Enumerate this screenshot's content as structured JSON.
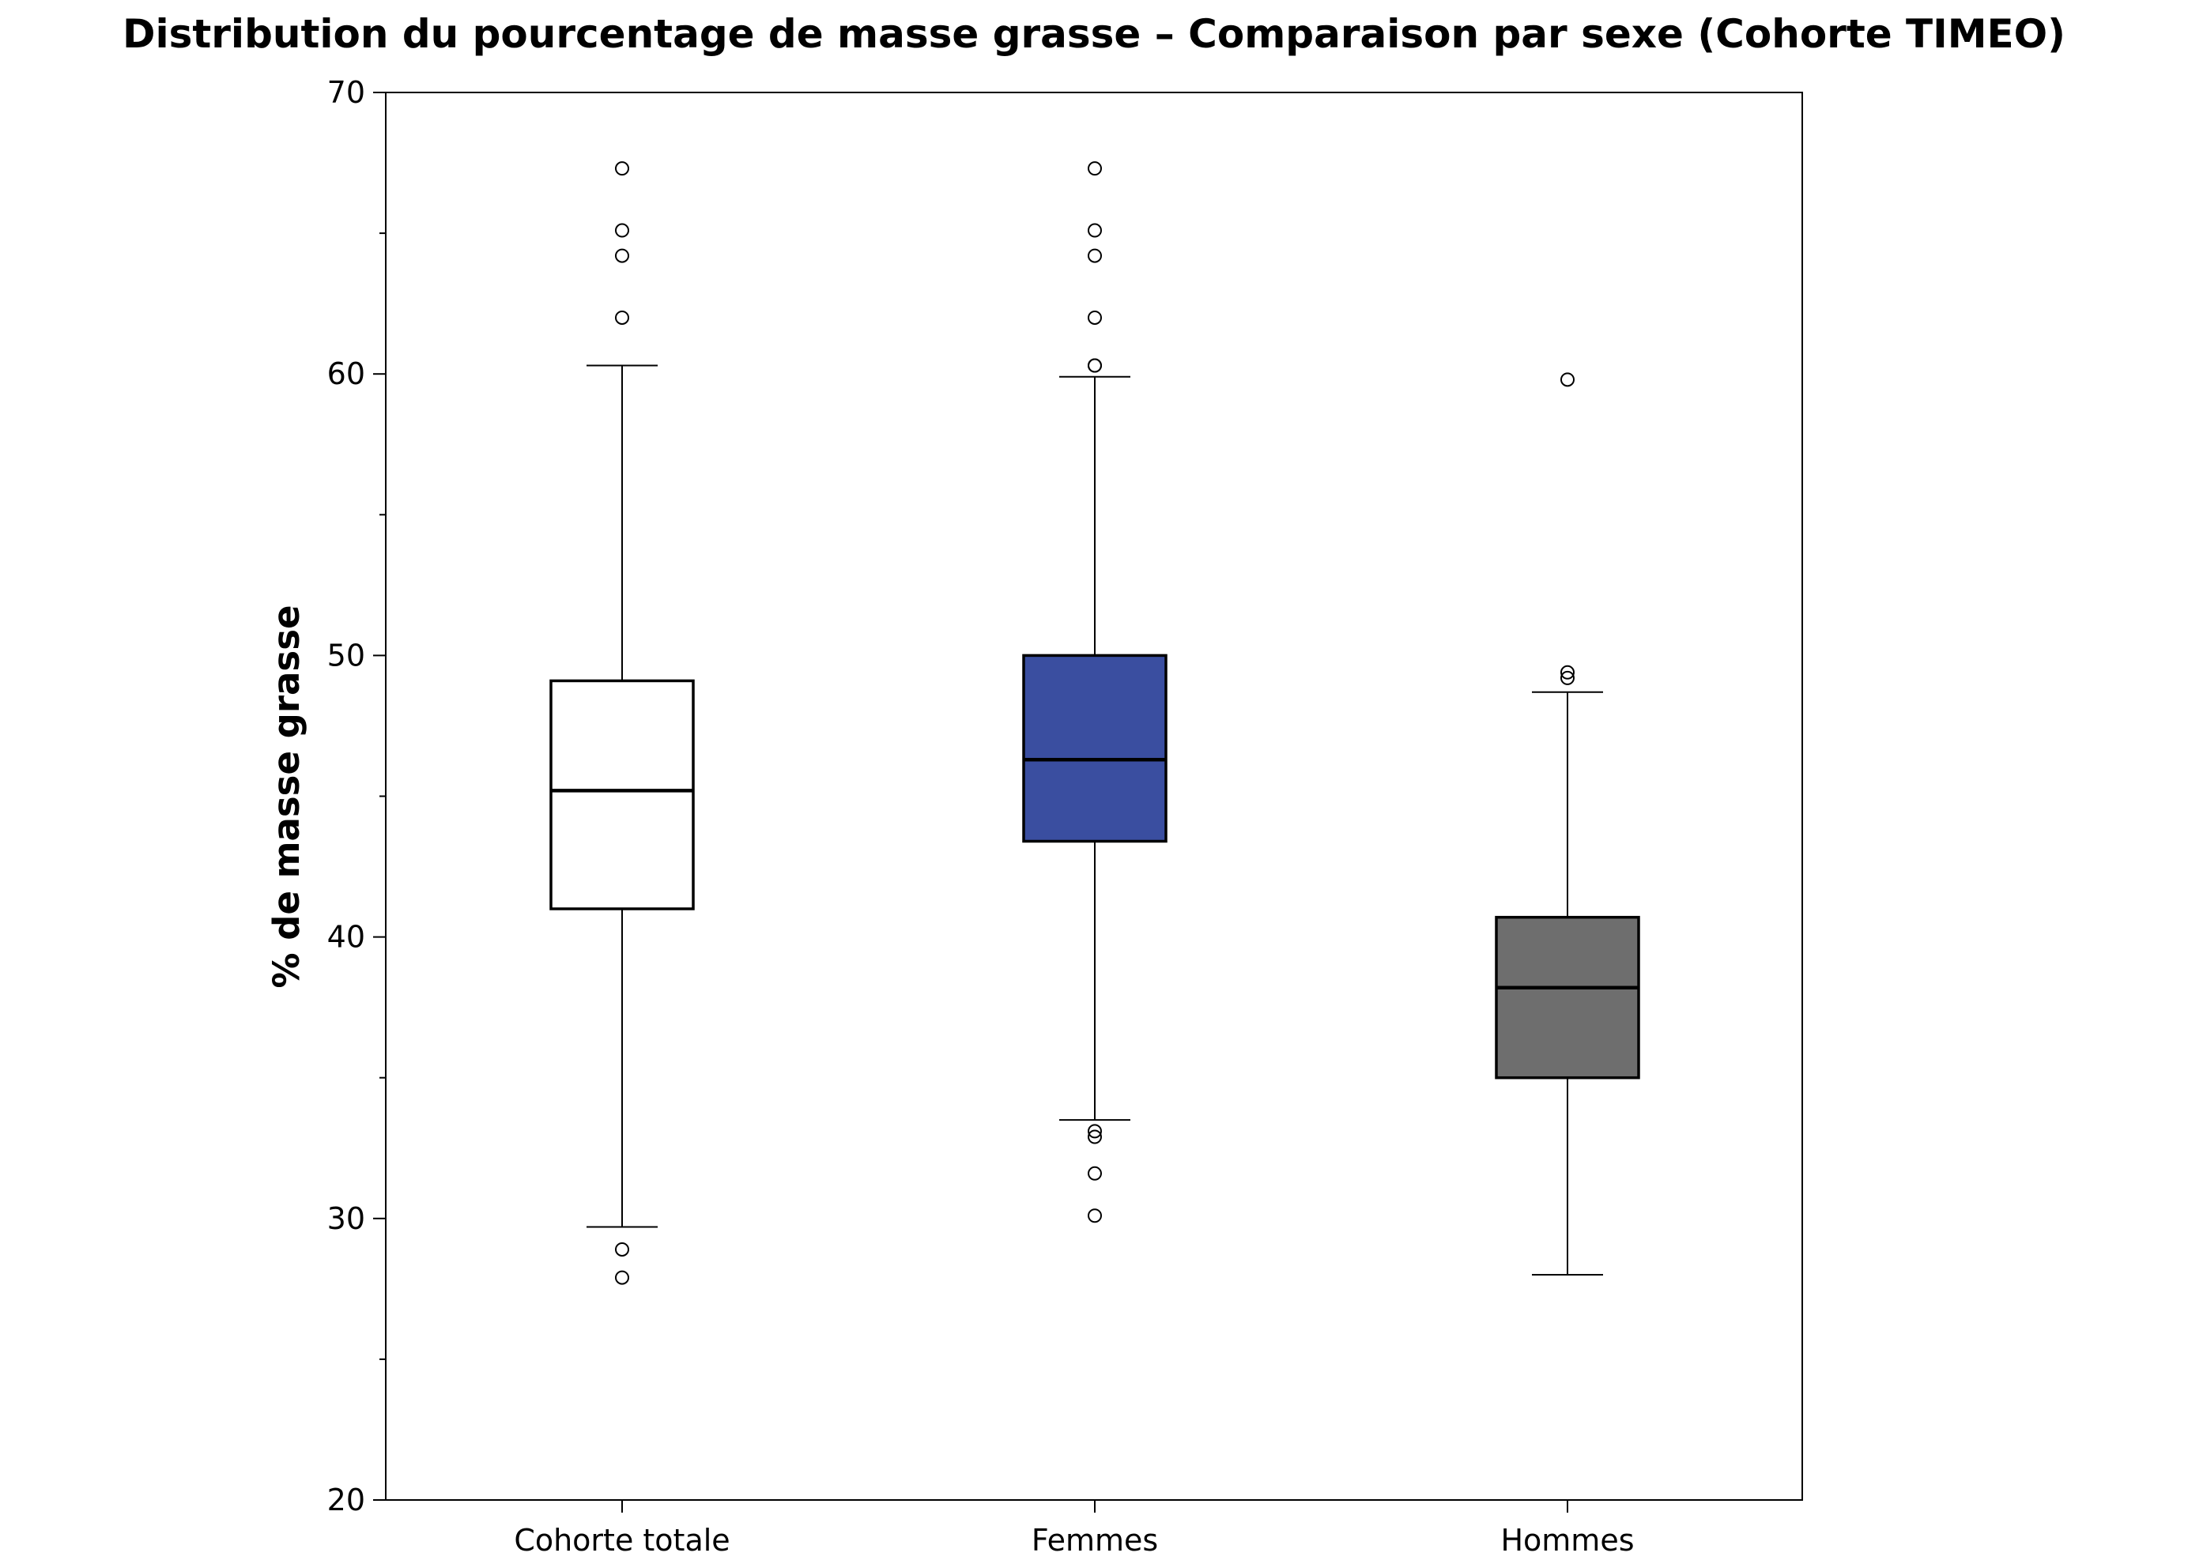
{
  "chart_data": {
    "type": "boxplot",
    "title": "Distribution du pourcentage de masse grasse – Comparaison par sexe (Cohorte TIMEO)",
    "xlabel": "",
    "ylabel": "% de masse grasse",
    "ylim": [
      20,
      70
    ],
    "yticks_major": [
      20,
      30,
      40,
      50,
      60,
      70
    ],
    "yticks_minor": [
      25,
      35,
      45,
      55,
      65
    ],
    "grid": false,
    "categories": [
      "Cohorte totale",
      "Femmes",
      "Hommes"
    ],
    "series": [
      {
        "name": "Cohorte totale",
        "fill": "#ffffff",
        "whisker_low": 29.7,
        "q1": 41.0,
        "median": 45.2,
        "q3": 49.1,
        "whisker_high": 60.3,
        "outliers": [
          67.3,
          65.1,
          64.2,
          62.0,
          28.9,
          27.9
        ]
      },
      {
        "name": "Femmes",
        "fill": "#3a4ea0",
        "whisker_low": 33.5,
        "q1": 43.4,
        "median": 46.3,
        "q3": 50.0,
        "whisker_high": 59.9,
        "outliers": [
          67.3,
          65.1,
          64.2,
          62.0,
          60.3,
          60.3,
          33.1,
          32.9,
          31.6,
          30.1
        ]
      },
      {
        "name": "Hommes",
        "fill": "#6e6e6e",
        "whisker_low": 28.0,
        "q1": 35.0,
        "median": 38.2,
        "q3": 40.7,
        "whisker_high": 48.7,
        "outliers": [
          59.8,
          49.4,
          49.2
        ]
      }
    ]
  }
}
